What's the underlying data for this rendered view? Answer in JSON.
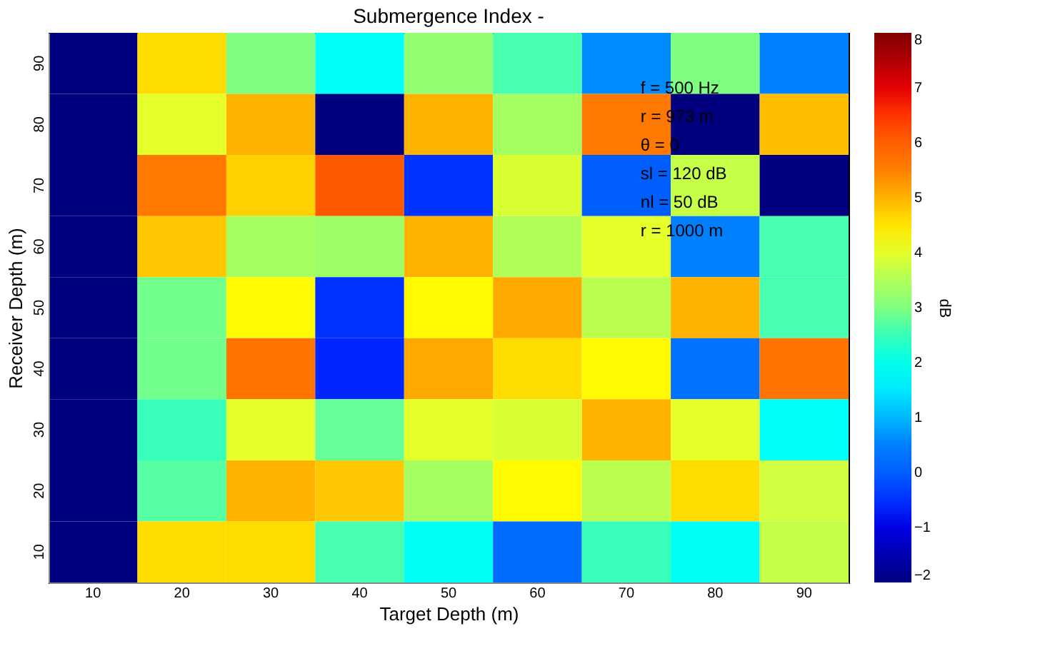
{
  "chart_data": {
    "type": "heatmap",
    "title": "Submergence Index -",
    "xlabel": "Target Depth (m)",
    "ylabel": "Receiver Depth (m)",
    "clabel": "dB",
    "categories": [
      "10",
      "20",
      "30",
      "40",
      "50",
      "60",
      "70",
      "80",
      "90"
    ],
    "y_categories": [
      "90",
      "80",
      "70",
      "60",
      "50",
      "40",
      "30",
      "20",
      "10"
    ],
    "cells": [
      [
        -2,
        4.6,
        3.0,
        1.8,
        3.2,
        2.6,
        0.6,
        3.0,
        0.5
      ],
      [
        -2,
        4.0,
        5.0,
        -2,
        5.0,
        3.4,
        5.6,
        -2,
        4.9
      ],
      [
        -2,
        5.6,
        4.7,
        6.1,
        -0.5,
        3.9,
        0.0,
        3.7,
        -2
      ],
      [
        -2,
        4.8,
        3.4,
        3.3,
        5.0,
        3.5,
        4.0,
        0.5,
        2.6
      ],
      [
        -2,
        2.9,
        4.3,
        -0.5,
        4.3,
        5.1,
        3.6,
        5.0,
        2.6
      ],
      [
        -2,
        2.9,
        5.7,
        -0.6,
        5.1,
        4.6,
        4.3,
        0.3,
        5.7
      ],
      [
        -2,
        2.5,
        4.0,
        2.8,
        4.0,
        3.9,
        5.0,
        4.0,
        1.8
      ],
      [
        -2,
        2.7,
        5.0,
        4.8,
        3.4,
        4.3,
        3.6,
        4.6,
        3.8
      ],
      [
        -2,
        4.6,
        4.6,
        2.6,
        1.9,
        0.2,
        2.5,
        1.9,
        3.7
      ]
    ],
    "clim": [
      -2,
      8
    ],
    "cticks": [
      -2,
      -1,
      0,
      1,
      2,
      3,
      4,
      5,
      6,
      7,
      8
    ],
    "annotations": [
      "f = 500 Hz",
      "r = 973 m",
      "θ = 0",
      "sl = 120 dB",
      "nl = 50 dB",
      "r = 1000 m"
    ]
  }
}
